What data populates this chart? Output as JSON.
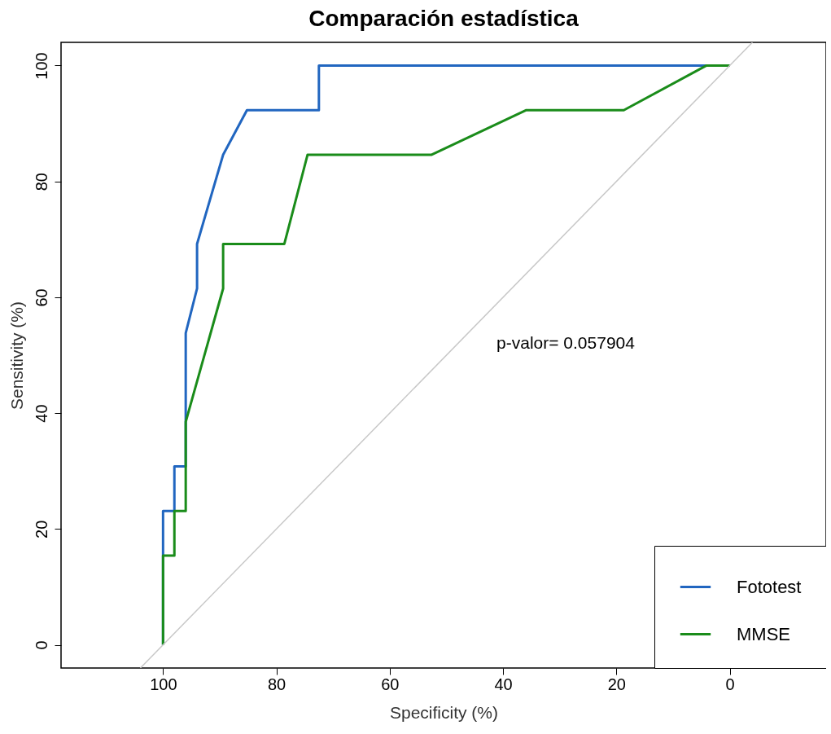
{
  "chart_data": {
    "type": "line",
    "title": "Comparación estadística",
    "xlabel": "Specificity (%)",
    "ylabel": "Sensitivity (%)",
    "xlim": [
      118,
      -17
    ],
    "ylim": [
      -4,
      104
    ],
    "xticks": [
      100,
      80,
      60,
      40,
      20,
      0
    ],
    "yticks": [
      0,
      20,
      40,
      60,
      80,
      100
    ],
    "grid": false,
    "legend": "bottom right",
    "marker": "none",
    "line_style": "solid",
    "annotations": [
      "p-valor= 0.057904"
    ],
    "series": [
      {
        "name": "Fototest",
        "color": "#2166c0",
        "x": [
          100,
          100,
          98,
          98,
          96,
          96,
          94,
          94,
          89.4,
          85.2,
          72.5,
          72.5,
          0
        ],
        "values": [
          0,
          23.1,
          23.1,
          30.8,
          30.8,
          53.8,
          61.5,
          69.2,
          84.6,
          92.3,
          92.3,
          100,
          100
        ]
      },
      {
        "name": "MMSE",
        "color": "#1a8c1a",
        "x": [
          100,
          100,
          98,
          98,
          96,
          96,
          89.4,
          89.4,
          78.6,
          74.5,
          52.6,
          35.9,
          18.7,
          4.1,
          0
        ],
        "values": [
          0,
          15.4,
          15.4,
          23.1,
          23.1,
          38.5,
          61.5,
          69.2,
          69.2,
          84.6,
          84.6,
          92.3,
          92.3,
          100,
          100
        ]
      },
      {
        "color": "#c8c8c8",
        "x": [
          104,
          -4
        ],
        "values": [
          -4,
          104
        ]
      }
    ]
  }
}
